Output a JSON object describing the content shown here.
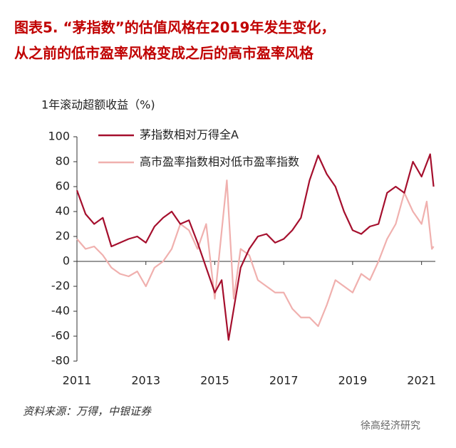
{
  "chart_data": {
    "type": "line",
    "title": [
      "图表5. “茅指数”的估值风格在2019年发生变化，",
      "从之前的低市盈率风格变成之后的高市盈率风格"
    ],
    "ylabel": "1年滚动超额收益（%)",
    "source": "资料来源：万得，中银证券",
    "watermark": "徐高经济研究",
    "xlim": [
      2011,
      2021.4
    ],
    "xticks": [
      2011,
      2013,
      2015,
      2017,
      2019,
      2021
    ],
    "ylim": [
      -80,
      100
    ],
    "yticks": [
      -80,
      -60,
      -40,
      -20,
      0,
      20,
      40,
      60,
      80,
      100
    ],
    "legend": "upper left",
    "series": [
      {
        "name": "茅指数相对万得全A",
        "color": "#a50f2d",
        "x": [
          2011,
          2011.25,
          2011.5,
          2011.75,
          2012,
          2012.25,
          2012.5,
          2012.75,
          2013,
          2013.25,
          2013.5,
          2013.75,
          2014,
          2014.25,
          2014.5,
          2014.75,
          2015,
          2015.2,
          2015.4,
          2015.75,
          2016,
          2016.25,
          2016.5,
          2016.75,
          2017,
          2017.25,
          2017.5,
          2017.75,
          2018,
          2018.25,
          2018.5,
          2018.75,
          2019,
          2019.25,
          2019.5,
          2019.75,
          2020,
          2020.25,
          2020.5,
          2020.75,
          2021,
          2021.25,
          2021.35
        ],
        "values": [
          57,
          38,
          30,
          35,
          12,
          15,
          18,
          20,
          15,
          28,
          35,
          40,
          30,
          33,
          15,
          -5,
          -25,
          -15,
          -63,
          -5,
          10,
          20,
          22,
          15,
          18,
          25,
          35,
          65,
          85,
          70,
          60,
          40,
          25,
          22,
          28,
          30,
          55,
          60,
          55,
          80,
          68,
          86,
          60
        ]
      },
      {
        "name": "高市盈率指数相对低市盈率指数",
        "color": "#f0b0ae",
        "x": [
          2011,
          2011.25,
          2011.5,
          2011.75,
          2012,
          2012.25,
          2012.5,
          2012.75,
          2013,
          2013.25,
          2013.5,
          2013.75,
          2014,
          2014.25,
          2014.5,
          2014.75,
          2015,
          2015.35,
          2015.55,
          2015.75,
          2016,
          2016.25,
          2016.5,
          2016.75,
          2017,
          2017.25,
          2017.5,
          2017.75,
          2018,
          2018.25,
          2018.5,
          2018.75,
          2019,
          2019.25,
          2019.5,
          2019.75,
          2020,
          2020.25,
          2020.5,
          2020.75,
          2021,
          2021.15,
          2021.3,
          2021.35
        ],
        "values": [
          18,
          10,
          12,
          5,
          -5,
          -10,
          -12,
          -8,
          -20,
          -5,
          0,
          10,
          30,
          25,
          10,
          30,
          -30,
          65,
          -30,
          10,
          5,
          -15,
          -20,
          -25,
          -25,
          -38,
          -45,
          -45,
          -52,
          -35,
          -15,
          -20,
          -25,
          -10,
          -15,
          0,
          18,
          30,
          55,
          40,
          30,
          48,
          10,
          12
        ]
      }
    ]
  }
}
